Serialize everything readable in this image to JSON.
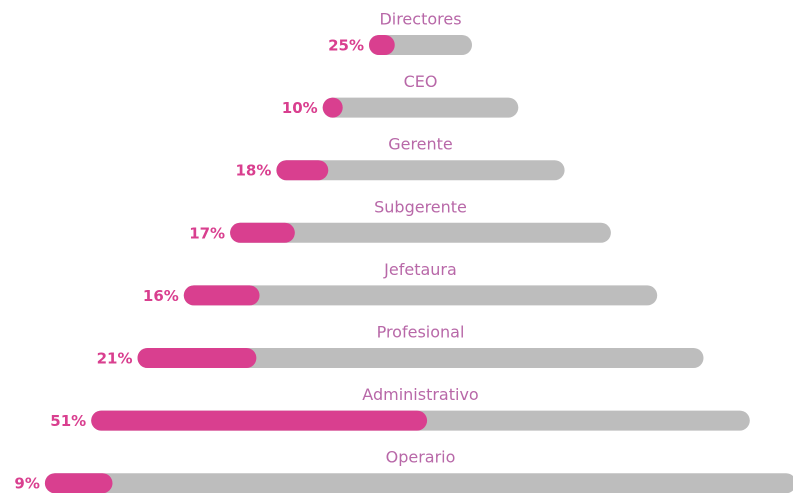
{
  "chart_data": {
    "type": "bar",
    "categories": [
      "Directores",
      "CEO",
      "Gerente",
      "Subgerente",
      "Jefetaura",
      "Profesional",
      "Administrativo",
      "Operario"
    ],
    "values": [
      25,
      10,
      18,
      17,
      16,
      21,
      51,
      9
    ],
    "value_labels": [
      "25%",
      "10%",
      "18%",
      "17%",
      "16%",
      "21%",
      "51%",
      "9%"
    ],
    "xlim": [
      0,
      100
    ],
    "color": "#d93f8f",
    "track_color": "#bdbdbd"
  }
}
